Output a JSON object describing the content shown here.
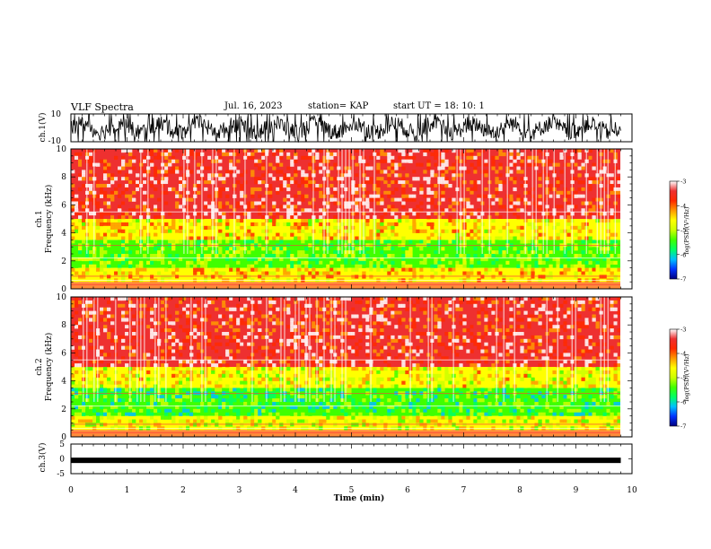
{
  "header": {
    "title": "VLF Spectra",
    "date": "Jul. 16, 2023",
    "station": "station= KAP",
    "start_ut": "start UT = 18: 10: 1"
  },
  "colorbar": {
    "label": "log(PSD)(V²/Hz)",
    "ticks": [
      "-3",
      "-4",
      "-5",
      "-6",
      "-7"
    ],
    "range": [
      -7,
      -3
    ],
    "colors": [
      "#000080",
      "#0033ff",
      "#00c0ff",
      "#00ff66",
      "#40ff00",
      "#ccff00",
      "#ffff00",
      "#ff9900",
      "#ff2a00",
      "#ee3030",
      "#ffffff"
    ]
  },
  "chart_data": [
    {
      "type": "line",
      "panel": "ch1-waveform",
      "ylabel": "ch.1(V)",
      "ylim": [
        -10,
        10
      ],
      "y_tick_labels": [
        "10",
        "-10"
      ],
      "x_range_min": [
        0,
        9.8
      ],
      "description_of_values": "dense broadband waveform oscillating roughly between -10 and +10 V over 0–9.8 min",
      "color": "#000000"
    },
    {
      "type": "heatmap",
      "panel": "ch1-spectrogram",
      "ylabel": "ch.1\nFrequency (kHz)",
      "ylabel_line1": "ch.1",
      "ylabel_line2": "Frequency (kHz)",
      "ylim_khz": [
        0,
        10
      ],
      "y_tick_labels": [
        "0",
        "2",
        "4",
        "6",
        "8",
        "10"
      ],
      "x_range_min": [
        0,
        9.8
      ],
      "bands_khz": [
        {
          "range": [
            0.5,
            1.5
          ],
          "log_psd": -4.5
        },
        {
          "range": [
            1.5,
            3.5
          ],
          "log_psd": -5.2
        },
        {
          "range": [
            3.5,
            5.0
          ],
          "log_psd": -4.6
        },
        {
          "range": [
            5.0,
            10.0
          ],
          "log_psd": -3.7
        }
      ]
    },
    {
      "type": "heatmap",
      "panel": "ch2-spectrogram",
      "ylabel_line1": "ch.2",
      "ylabel_line2": "Frequency (kHz)",
      "ylim_khz": [
        0,
        10
      ],
      "y_tick_labels": [
        "0",
        "2",
        "4",
        "6",
        "8",
        "10"
      ],
      "x_range_min": [
        0,
        9.8
      ],
      "bands_khz": [
        {
          "range": [
            0.5,
            1.5
          ],
          "log_psd": -4.8
        },
        {
          "range": [
            1.5,
            3.5
          ],
          "log_psd": -5.5
        },
        {
          "range": [
            3.5,
            5.0
          ],
          "log_psd": -4.7
        },
        {
          "range": [
            5.0,
            10.0
          ],
          "log_psd": -3.7
        }
      ]
    },
    {
      "type": "line",
      "panel": "ch3-waveform",
      "ylabel": "ch.3(V)",
      "ylim": [
        -5,
        5
      ],
      "y_tick_labels": [
        "5",
        "0",
        "-5"
      ],
      "x_range_min": [
        0,
        9.8
      ],
      "level_v": -0.5,
      "color": "#000000"
    }
  ],
  "x_axis": {
    "label": "Time (min)",
    "ticks": [
      "0",
      "1",
      "2",
      "3",
      "4",
      "5",
      "6",
      "7",
      "8",
      "9",
      "10"
    ],
    "range": [
      0,
      10
    ]
  }
}
